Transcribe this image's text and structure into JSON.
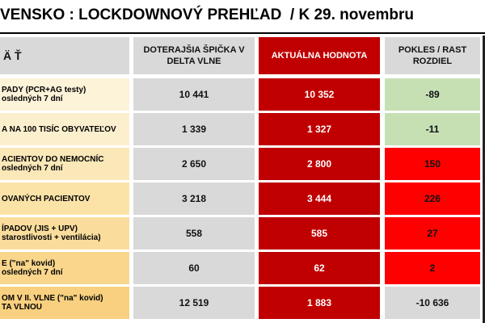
{
  "header": {
    "title": "VENSKO : LOCKDOWNOVÝ PREHĽAD  / K 29. novembru"
  },
  "table": {
    "columns": [
      "Ä Ť",
      "DOTERAJŠIA ŠPIČKA V DELTA VLNE",
      "AKTUÁLNA HODNOTA",
      "POKLES / RAST ROZDIEL"
    ],
    "rows": [
      {
        "label": [
          "PADY (PCR+AG testy)",
          "osledných 7 dní"
        ],
        "peak": "10 441",
        "current": "10 352",
        "change": "-89"
      },
      {
        "label": [
          "A NA 100 TISÍC OBYVATEĽOV"
        ],
        "peak": "1 339",
        "current": "1 327",
        "change": "-11"
      },
      {
        "label": [
          "ACIENTOV DO NEMOCNÍC",
          "osledných 7 dní"
        ],
        "peak": "2 650",
        "current": "2 800",
        "change": "150"
      },
      {
        "label": [
          "OVANÝCH PACIENTOV"
        ],
        "peak": "3 218",
        "current": "3 444",
        "change": "226"
      },
      {
        "label": [
          "ÍPADOV (JIS + UPV)",
          "starostlivosti + ventilácia)"
        ],
        "peak": "558",
        "current": "585",
        "change": "27"
      },
      {
        "label": [
          "E (\"na\" kovid)",
          "osledných 7 dní"
        ],
        "peak": "60",
        "current": "62",
        "change": "2"
      },
      {
        "label": [
          "OM V II. VLNE (\"na\" kovid)",
          "TA VLNOU"
        ],
        "peak": "12 519",
        "current": "1 883",
        "change": "-10 636"
      }
    ]
  }
}
